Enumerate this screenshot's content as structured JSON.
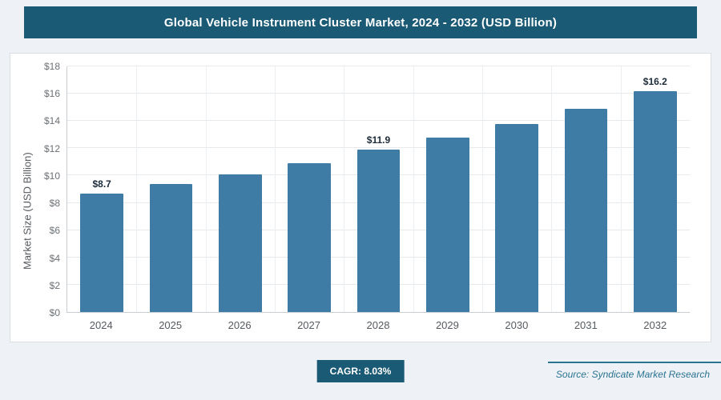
{
  "header": {
    "title": "Global Vehicle Instrument Cluster Market, 2024 - 2032 (USD Billion)"
  },
  "chart_data": {
    "type": "bar",
    "title": "Global Vehicle Instrument Cluster Market, 2024 - 2032 (USD Billion)",
    "categories": [
      "2024",
      "2025",
      "2026",
      "2027",
      "2028",
      "2029",
      "2030",
      "2031",
      "2032"
    ],
    "values": [
      8.7,
      9.4,
      10.1,
      10.9,
      11.9,
      12.8,
      13.8,
      14.9,
      16.2
    ],
    "bar_labels": [
      "$8.7",
      "",
      "",
      "",
      "$11.9",
      "",
      "",
      "",
      "$16.2"
    ],
    "xlabel": "",
    "ylabel": "Market Size (USD Billion)",
    "ylim": [
      0,
      18
    ],
    "ytick_step": 2,
    "ytick_prefix": "$",
    "grid": true,
    "legend": "none",
    "bar_color": "#3e7ca6",
    "header_color": "#1b5a74",
    "label_color": "#1c2b39"
  },
  "footer": {
    "cagr_label": "CAGR: 8.03%",
    "source": "Source: Syndicate Market Research"
  }
}
